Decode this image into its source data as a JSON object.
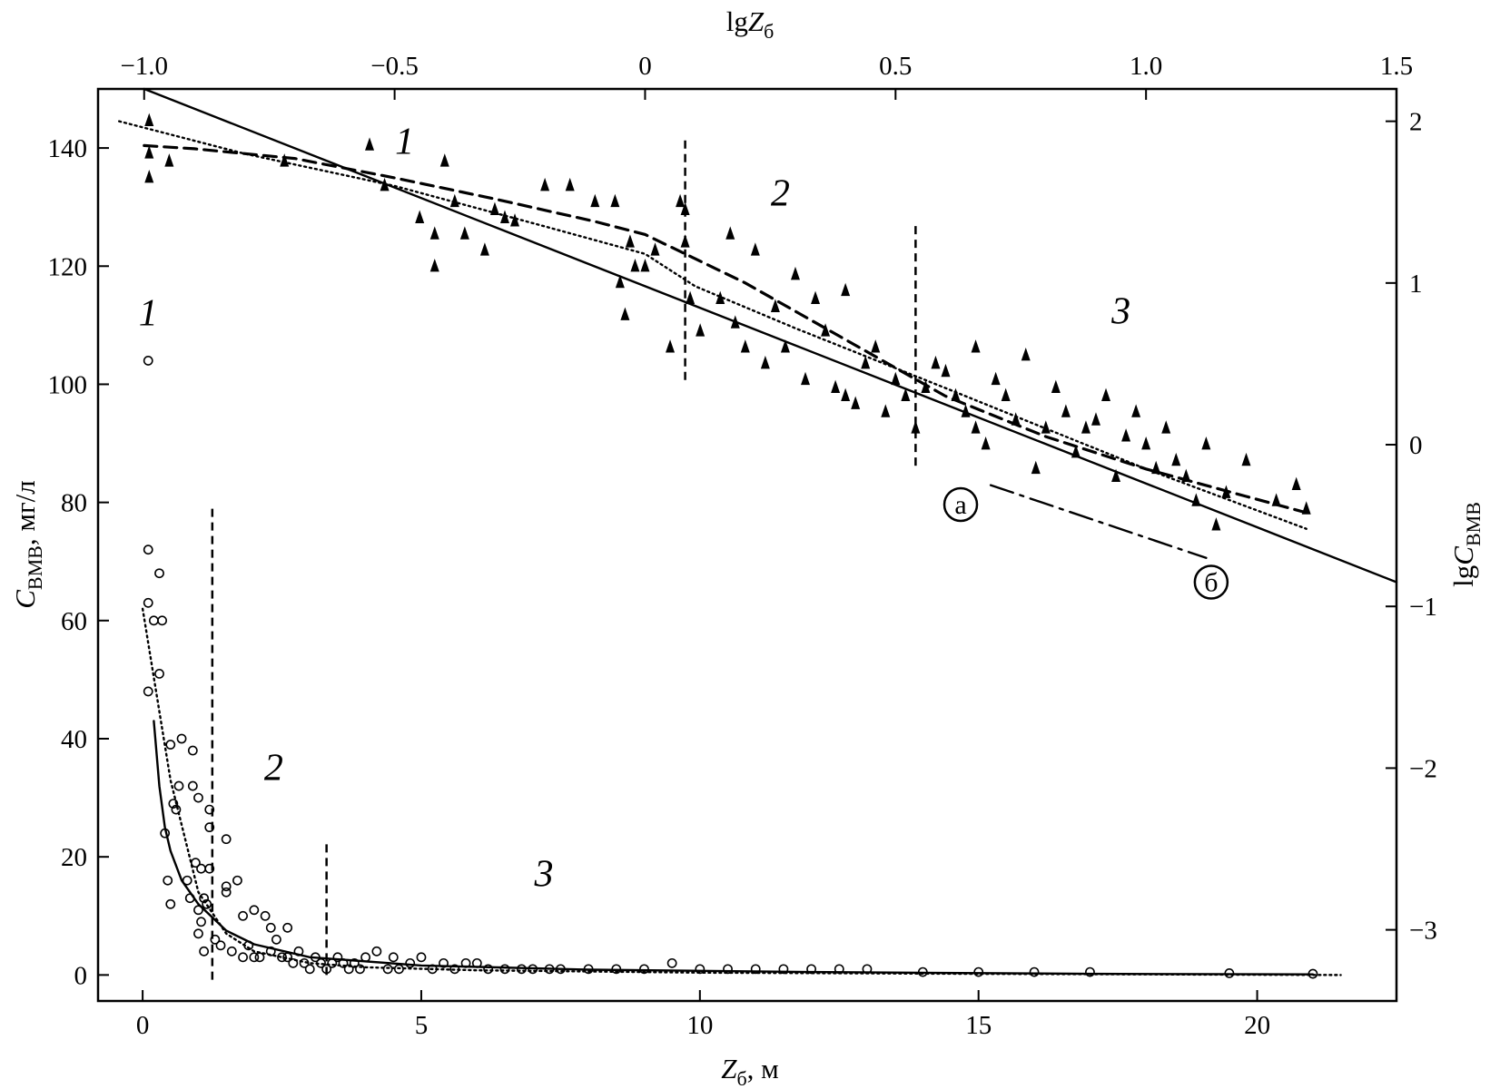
{
  "chart_data": {
    "type": "scatter",
    "title": "",
    "axes": {
      "x_bottom": {
        "label_main": "Z",
        "label_sub": "б",
        "label_suffix": ", м",
        "range": [
          -0.8,
          22.5
        ],
        "ticks": [
          0,
          5,
          10,
          15,
          20
        ],
        "tick_labels": [
          "0",
          "5",
          "10",
          "15",
          "20"
        ]
      },
      "y_left": {
        "label_main": "C",
        "label_sub": "ВМВ",
        "label_suffix": ", мг/л",
        "range": [
          -4.4,
          150
        ],
        "ticks": [
          0,
          20,
          40,
          60,
          80,
          100,
          120,
          140
        ],
        "tick_labels": [
          "0",
          "20",
          "40",
          "60",
          "80",
          "100",
          "120",
          "140"
        ]
      },
      "x_top": {
        "label_prefix": "lg",
        "label_main": "Z",
        "label_sub": "б",
        "range": [
          -1.092,
          1.5
        ],
        "ticks": [
          -1.0,
          -0.5,
          0,
          0.5,
          1.0,
          1.5
        ],
        "tick_labels": [
          "−1.0",
          "−0.5",
          "0",
          "0.5",
          "1.0",
          "1.5"
        ]
      },
      "y_right": {
        "label_prefix": "lg",
        "label_main": "C",
        "label_sub": "ВМВ",
        "range": [
          -3.44,
          2.2
        ],
        "ticks": [
          2,
          1,
          0,
          -1,
          -2,
          -3
        ],
        "tick_labels": [
          "2",
          "1",
          "0",
          "−1",
          "−2",
          "−3"
        ]
      }
    },
    "grid": false,
    "legend": "none",
    "series": [
      {
        "marker": "circle-open",
        "axes": "bottom-left",
        "x": [
          0.1,
          0.1,
          0.1,
          0.1,
          0.2,
          0.3,
          0.3,
          0.35,
          0.4,
          0.45,
          0.5,
          0.5,
          0.55,
          0.6,
          0.65,
          0.7,
          0.8,
          0.85,
          0.9,
          0.9,
          0.95,
          1.0,
          1.0,
          1.0,
          1.05,
          1.05,
          1.1,
          1.1,
          1.15,
          1.2,
          1.2,
          1.2,
          1.3,
          1.4,
          1.5,
          1.5,
          1.5,
          1.6,
          1.7,
          1.8,
          1.8,
          1.9,
          2.0,
          2.0,
          2.1,
          2.2,
          2.3,
          2.3,
          2.4,
          2.5,
          2.6,
          2.6,
          2.7,
          2.8,
          2.9,
          3.0,
          3.1,
          3.2,
          3.3,
          3.4,
          3.5,
          3.6,
          3.7,
          3.8,
          3.9,
          4.0,
          4.2,
          4.4,
          4.5,
          4.6,
          4.8,
          5.0,
          5.2,
          5.4,
          5.6,
          5.8,
          6.0,
          6.2,
          6.5,
          6.8,
          7.0,
          7.3,
          7.5,
          8.0,
          8.5,
          9.0,
          9.5,
          10.0,
          10.5,
          11.0,
          11.5,
          12.0,
          12.5,
          13.0,
          14.0,
          15.0,
          16.0,
          17.0,
          19.5,
          21.0
        ],
        "y": [
          104,
          72,
          63,
          48,
          60,
          68,
          51,
          60,
          24,
          16,
          12,
          39,
          29,
          28,
          32,
          40,
          16,
          13,
          38,
          32,
          19,
          11,
          7,
          30,
          18,
          9,
          13,
          4,
          12,
          28,
          25,
          18,
          6,
          5,
          23,
          15,
          14,
          4,
          16,
          10,
          3,
          5,
          3,
          11,
          3,
          10,
          8,
          4,
          6,
          3,
          8,
          3,
          2,
          4,
          2,
          1,
          3,
          2,
          1,
          2,
          3,
          2,
          1,
          2,
          1,
          3,
          4,
          1,
          3,
          1,
          2,
          3,
          1,
          2,
          1,
          2,
          2,
          1,
          1,
          1,
          1,
          1,
          1,
          1,
          1,
          1,
          2,
          1,
          1,
          1,
          1,
          1,
          1,
          1,
          0.5,
          0.5,
          0.5,
          0.5,
          0.3,
          0.2
        ]
      },
      {
        "marker": "triangle-filled",
        "axes": "top-right",
        "x": [
          -0.99,
          -0.99,
          -0.99,
          -0.95,
          -0.72,
          -0.55,
          -0.52,
          -0.45,
          -0.42,
          -0.42,
          -0.4,
          -0.38,
          -0.36,
          -0.32,
          -0.3,
          -0.28,
          -0.26,
          -0.2,
          -0.15,
          -0.1,
          -0.06,
          -0.05,
          -0.04,
          -0.03,
          -0.02,
          0.0,
          0.02,
          0.05,
          0.07,
          0.08,
          0.08,
          0.09,
          0.11,
          0.15,
          0.17,
          0.18,
          0.2,
          0.22,
          0.24,
          0.26,
          0.28,
          0.3,
          0.32,
          0.34,
          0.36,
          0.38,
          0.4,
          0.4,
          0.42,
          0.44,
          0.46,
          0.48,
          0.5,
          0.52,
          0.54,
          0.56,
          0.58,
          0.6,
          0.62,
          0.64,
          0.66,
          0.66,
          0.68,
          0.7,
          0.72,
          0.74,
          0.76,
          0.78,
          0.8,
          0.82,
          0.84,
          0.86,
          0.88,
          0.9,
          0.92,
          0.94,
          0.96,
          0.98,
          1.0,
          1.02,
          1.04,
          1.06,
          1.08,
          1.1,
          1.12,
          1.14,
          1.16,
          1.2,
          1.26,
          1.3,
          1.32
        ],
        "y": [
          2.0,
          1.8,
          1.65,
          1.75,
          1.75,
          1.85,
          1.6,
          1.4,
          1.3,
          1.1,
          1.75,
          1.5,
          1.3,
          1.2,
          1.45,
          1.4,
          1.38,
          1.6,
          1.6,
          1.5,
          1.5,
          1.0,
          0.8,
          1.25,
          1.1,
          1.1,
          1.2,
          0.6,
          1.5,
          1.25,
          1.45,
          0.9,
          0.7,
          0.9,
          1.3,
          0.75,
          0.6,
          1.2,
          0.5,
          0.85,
          0.6,
          1.05,
          0.4,
          0.9,
          0.7,
          0.35,
          0.95,
          0.3,
          0.25,
          0.5,
          0.6,
          0.2,
          0.4,
          0.3,
          0.1,
          0.35,
          0.5,
          0.45,
          0.3,
          0.2,
          0.6,
          0.1,
          0.0,
          0.4,
          0.3,
          0.15,
          0.55,
          -0.15,
          0.1,
          0.35,
          0.2,
          -0.05,
          0.1,
          0.15,
          0.3,
          -0.2,
          0.05,
          0.2,
          0.0,
          -0.15,
          0.1,
          -0.1,
          -0.2,
          -0.35,
          0.0,
          -0.5,
          -0.3,
          -0.1,
          -0.35,
          -0.25,
          -0.4
        ]
      }
    ],
    "fits": [
      {
        "style": "solid",
        "axes": "bottom-left",
        "x": [
          0.2,
          0.3,
          0.4,
          0.5,
          0.7,
          1.0,
          1.5,
          2.0,
          3.0,
          5.0,
          8.0,
          12.0,
          17.0,
          21.0
        ],
        "y": [
          43,
          32,
          25,
          21,
          16,
          12,
          7.5,
          5.2,
          3.0,
          1.6,
          0.9,
          0.5,
          0.2,
          0.1
        ]
      },
      {
        "style": "dotted",
        "axes": "bottom-left",
        "x": [
          0.0,
          0.5,
          1.0,
          1.5,
          2.0,
          3.0,
          4.0,
          6.0,
          10.0,
          15.0,
          21.5
        ],
        "y": [
          62,
          33,
          14,
          7,
          4,
          2,
          1.3,
          0.8,
          0.4,
          0.2,
          0.0
        ]
      },
      {
        "style": "solid",
        "axes": "top-right",
        "x": [
          -1.0,
          1.5
        ],
        "y": [
          2.2,
          -0.85
        ]
      },
      {
        "style": "dotted",
        "axes": "top-right",
        "x": [
          -1.05,
          -0.8,
          -0.5,
          -0.2,
          0.0,
          0.1,
          0.3,
          0.6,
          1.0,
          1.32
        ],
        "y": [
          2.0,
          1.8,
          1.6,
          1.35,
          1.18,
          0.98,
          0.72,
          0.35,
          -0.15,
          -0.52
        ]
      },
      {
        "style": "dashed",
        "axes": "top-right",
        "x": [
          -1.0,
          -0.9,
          -0.7,
          -0.5,
          -0.3,
          -0.1,
          0.0,
          0.1,
          0.2,
          0.4,
          0.6,
          0.8,
          1.0,
          1.2,
          1.32
        ],
        "y": [
          1.85,
          1.83,
          1.77,
          1.65,
          1.52,
          1.38,
          1.3,
          1.15,
          1.0,
          0.65,
          0.3,
          0.05,
          -0.15,
          -0.32,
          -0.42
        ]
      },
      {
        "style": "dashdot",
        "axes": "top-right",
        "x": [
          0.69,
          1.12
        ],
        "y": [
          -0.25,
          -0.7
        ]
      }
    ],
    "zone_boundaries": [
      {
        "axes": "bottom-left",
        "x": 1.25,
        "y_range": [
          -0.8,
          79.5
        ]
      },
      {
        "axes": "bottom-left",
        "x": 3.3,
        "y_range": [
          0,
          23
        ]
      },
      {
        "axes": "top-right",
        "x": 0.08,
        "y_range": [
          0.4,
          1.9
        ]
      },
      {
        "axes": "top-right",
        "x": 0.54,
        "y_range": [
          -0.13,
          1.38
        ]
      }
    ],
    "annotations": [
      {
        "text": "1",
        "axes": "bottom-left",
        "x": 0.1,
        "y": 110
      },
      {
        "text": "2",
        "axes": "bottom-left",
        "x": 2.35,
        "y": 33
      },
      {
        "text": "3",
        "axes": "bottom-left",
        "x": 7.2,
        "y": 15
      },
      {
        "text": "1",
        "axes": "top-right",
        "x": -0.48,
        "y": 1.8
      },
      {
        "text": "2",
        "axes": "top-right",
        "x": 0.27,
        "y": 1.48
      },
      {
        "text": "3",
        "axes": "top-right",
        "x": 0.95,
        "y": 0.75
      },
      {
        "text": "а",
        "axes": "top-right",
        "x": 0.63,
        "y": -0.37,
        "circled": true
      },
      {
        "text": "б",
        "axes": "top-right",
        "x": 1.13,
        "y": -0.85,
        "circled": true
      }
    ]
  }
}
